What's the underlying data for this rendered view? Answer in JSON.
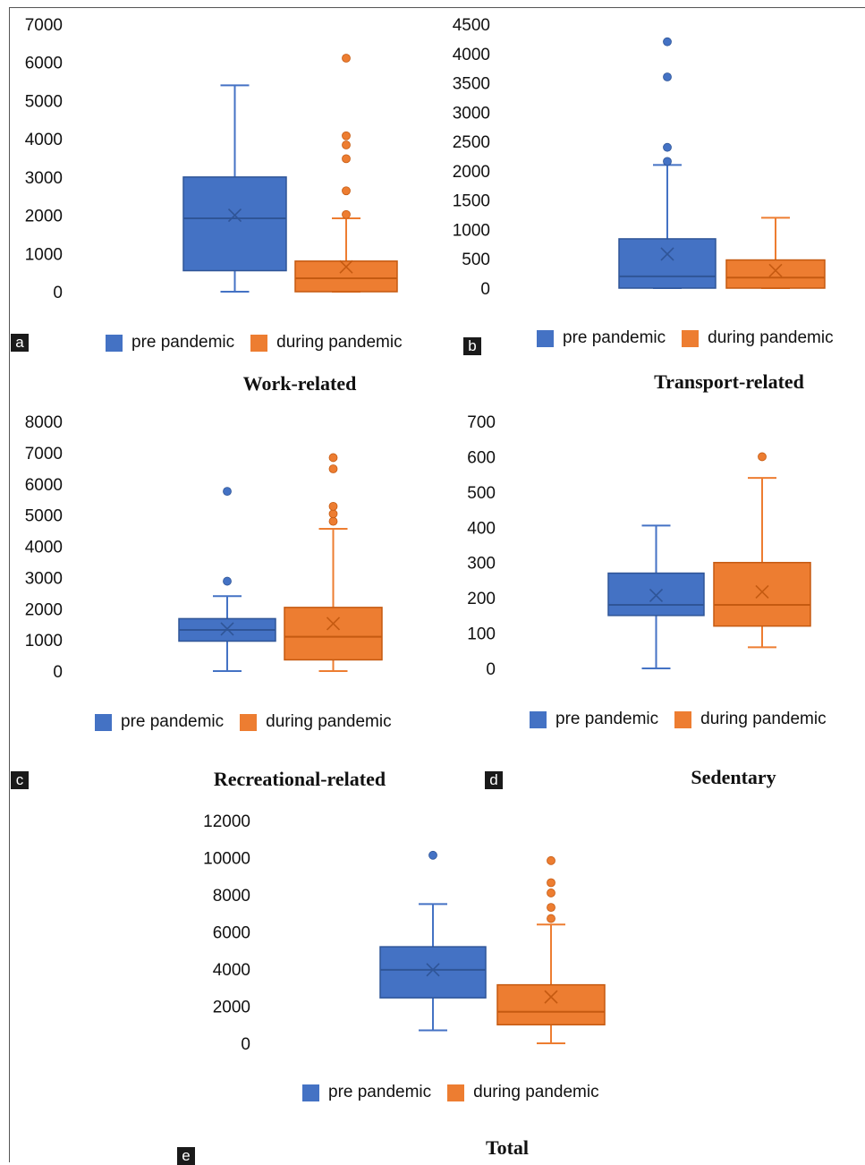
{
  "colors": {
    "pre": "#4472C4",
    "during": "#ED7D31",
    "pre_stroke": "#2F5597",
    "during_stroke": "#C55A11"
  },
  "chart_data": [
    {
      "type": "box",
      "panel": "a",
      "title": "Work-related",
      "ylim": [
        0,
        7000
      ],
      "yticks": [
        0,
        1000,
        2000,
        3000,
        4000,
        5000,
        6000,
        7000
      ],
      "legend": [
        "pre pandemic",
        "during pandemic"
      ],
      "series": [
        {
          "name": "pre pandemic",
          "min": 0,
          "q1": 550,
          "median": 1920,
          "q3": 3000,
          "max": 5400,
          "mean": 2000,
          "outliers": []
        },
        {
          "name": "during pandemic",
          "min": 0,
          "q1": 0,
          "median": 350,
          "q3": 800,
          "max": 1920,
          "mean": 650,
          "outliers": [
            2020,
            2640,
            3480,
            3840,
            4080,
            6110
          ]
        }
      ]
    },
    {
      "type": "box",
      "panel": "b",
      "title": "Transport-related",
      "ylim": [
        0,
        4500
      ],
      "yticks": [
        0,
        500,
        1000,
        1500,
        2000,
        2500,
        3000,
        3500,
        4000,
        4500
      ],
      "legend": [
        "pre pandemic",
        "during pandemic"
      ],
      "series": [
        {
          "name": "pre pandemic",
          "min": 0,
          "q1": 0,
          "median": 200,
          "q3": 840,
          "max": 2100,
          "mean": 580,
          "outliers": [
            2160,
            2400,
            3600,
            4200
          ]
        },
        {
          "name": "during pandemic",
          "min": 0,
          "q1": 0,
          "median": 180,
          "q3": 480,
          "max": 1200,
          "mean": 300,
          "outliers": []
        }
      ]
    },
    {
      "type": "box",
      "panel": "c",
      "title": "Recreational-related",
      "ylim": [
        0,
        8000
      ],
      "yticks": [
        0,
        1000,
        2000,
        3000,
        4000,
        5000,
        6000,
        7000,
        8000
      ],
      "legend": [
        "pre pandemic",
        "during pandemic"
      ],
      "series": [
        {
          "name": "pre pandemic",
          "min": 0,
          "q1": 960,
          "median": 1320,
          "q3": 1680,
          "max": 2400,
          "mean": 1350,
          "outliers": [
            2880,
            5760
          ]
        },
        {
          "name": "during pandemic",
          "min": 0,
          "q1": 360,
          "median": 1100,
          "q3": 2040,
          "max": 4560,
          "mean": 1520,
          "outliers": [
            4800,
            5040,
            5280,
            6480,
            6840
          ]
        }
      ]
    },
    {
      "type": "box",
      "panel": "d",
      "title": "Sedentary",
      "ylim": [
        0,
        700
      ],
      "yticks": [
        0,
        100,
        200,
        300,
        400,
        500,
        600,
        700
      ],
      "legend": [
        "pre pandemic",
        "during pandemic"
      ],
      "series": [
        {
          "name": "pre pandemic",
          "min": 0,
          "q1": 150,
          "median": 180,
          "q3": 270,
          "max": 405,
          "mean": 207,
          "outliers": []
        },
        {
          "name": "during pandemic",
          "min": 60,
          "q1": 120,
          "median": 180,
          "q3": 300,
          "max": 540,
          "mean": 217,
          "outliers": [
            600
          ]
        }
      ]
    },
    {
      "type": "box",
      "panel": "e",
      "title": "Total",
      "ylim": [
        0,
        12000
      ],
      "yticks": [
        0,
        2000,
        4000,
        6000,
        8000,
        10000,
        12000
      ],
      "legend": [
        "pre pandemic",
        "during pandemic"
      ],
      "series": [
        {
          "name": "pre pandemic",
          "min": 700,
          "q1": 2450,
          "median": 3960,
          "q3": 5200,
          "max": 7500,
          "mean": 3960,
          "outliers": [
            10130
          ]
        },
        {
          "name": "during pandemic",
          "min": 0,
          "q1": 1000,
          "median": 1700,
          "q3": 3150,
          "max": 6400,
          "mean": 2500,
          "outliers": [
            6720,
            7320,
            8100,
            8650,
            9840
          ]
        }
      ]
    }
  ]
}
